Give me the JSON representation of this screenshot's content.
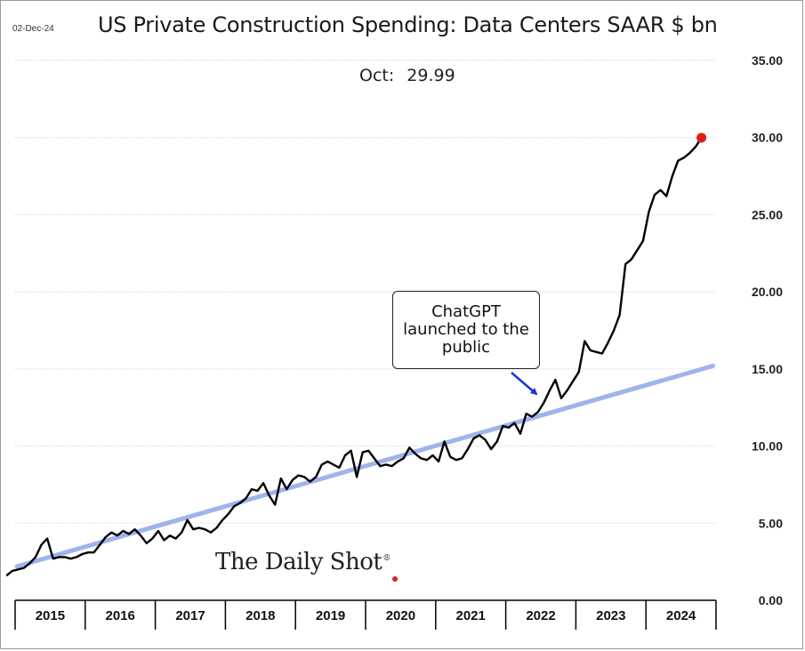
{
  "date_stamp": "02-Dec-24",
  "latest": {
    "label": "Oct:",
    "value": "29.99"
  },
  "annotation": {
    "lines": [
      "ChatGPT",
      "launched to the",
      "public"
    ]
  },
  "logo": {
    "text": "The Daily Shot",
    "mark": "®"
  },
  "colors": {
    "series": "#000000",
    "trend": "#9fb3ec",
    "last_point": "#e31c1c",
    "arrow": "#1b33d6",
    "grid": "#d9d9d9"
  },
  "chart_data": {
    "type": "line",
    "title": "US Private Construction Spending: Data Centers SAAR $ bn",
    "ylim": [
      0,
      35
    ],
    "y_ticks": [
      "0.00",
      "5.00",
      "10.00",
      "15.00",
      "20.00",
      "25.00",
      "30.00",
      "35.00"
    ],
    "y_axis_position": "right",
    "x_tick_labels": [
      "2015",
      "2016",
      "2017",
      "2018",
      "2019",
      "2020",
      "2021",
      "2022",
      "2023",
      "2024"
    ],
    "grid": true,
    "frequency": "monthly",
    "start": "2014-11",
    "end": "2024-10",
    "series": [
      {
        "name": "",
        "style": "line",
        "values": [
          1.6,
          1.9,
          2.0,
          2.1,
          2.4,
          2.8,
          3.6,
          4.0,
          2.7,
          2.8,
          2.8,
          2.7,
          2.8,
          3.0,
          3.1,
          3.1,
          3.6,
          4.1,
          4.4,
          4.2,
          4.5,
          4.3,
          4.6,
          4.2,
          3.7,
          4.0,
          4.5,
          3.9,
          4.2,
          4.0,
          4.4,
          5.2,
          4.6,
          4.7,
          4.6,
          4.4,
          4.7,
          5.2,
          5.6,
          6.1,
          6.3,
          6.6,
          7.2,
          7.1,
          7.6,
          6.8,
          6.2,
          7.9,
          7.2,
          7.8,
          8.1,
          8.0,
          7.7,
          8.0,
          8.8,
          9.0,
          8.8,
          8.6,
          9.4,
          9.7,
          8.0,
          9.6,
          9.7,
          9.2,
          8.7,
          8.8,
          8.7,
          9.0,
          9.2,
          9.9,
          9.5,
          9.2,
          9.1,
          9.4,
          9.0,
          10.3,
          9.3,
          9.1,
          9.2,
          9.8,
          10.5,
          10.7,
          10.4,
          9.8,
          10.3,
          11.3,
          11.2,
          11.5,
          10.8,
          12.1,
          11.9,
          12.2,
          12.8,
          13.6,
          14.3,
          13.1,
          13.6,
          14.2,
          14.8,
          16.8,
          16.2,
          16.1,
          16.0,
          16.7,
          17.5,
          18.5,
          21.8,
          22.1,
          22.7,
          23.3,
          25.2,
          26.3,
          26.6,
          26.2,
          27.5,
          28.5,
          28.7,
          29.0,
          29.4,
          29.99
        ]
      },
      {
        "name": "",
        "style": "trend",
        "start_value": 2.2,
        "end_value": 15.2
      }
    ],
    "last_point": {
      "date": "2024-10",
      "value": 29.99
    }
  }
}
